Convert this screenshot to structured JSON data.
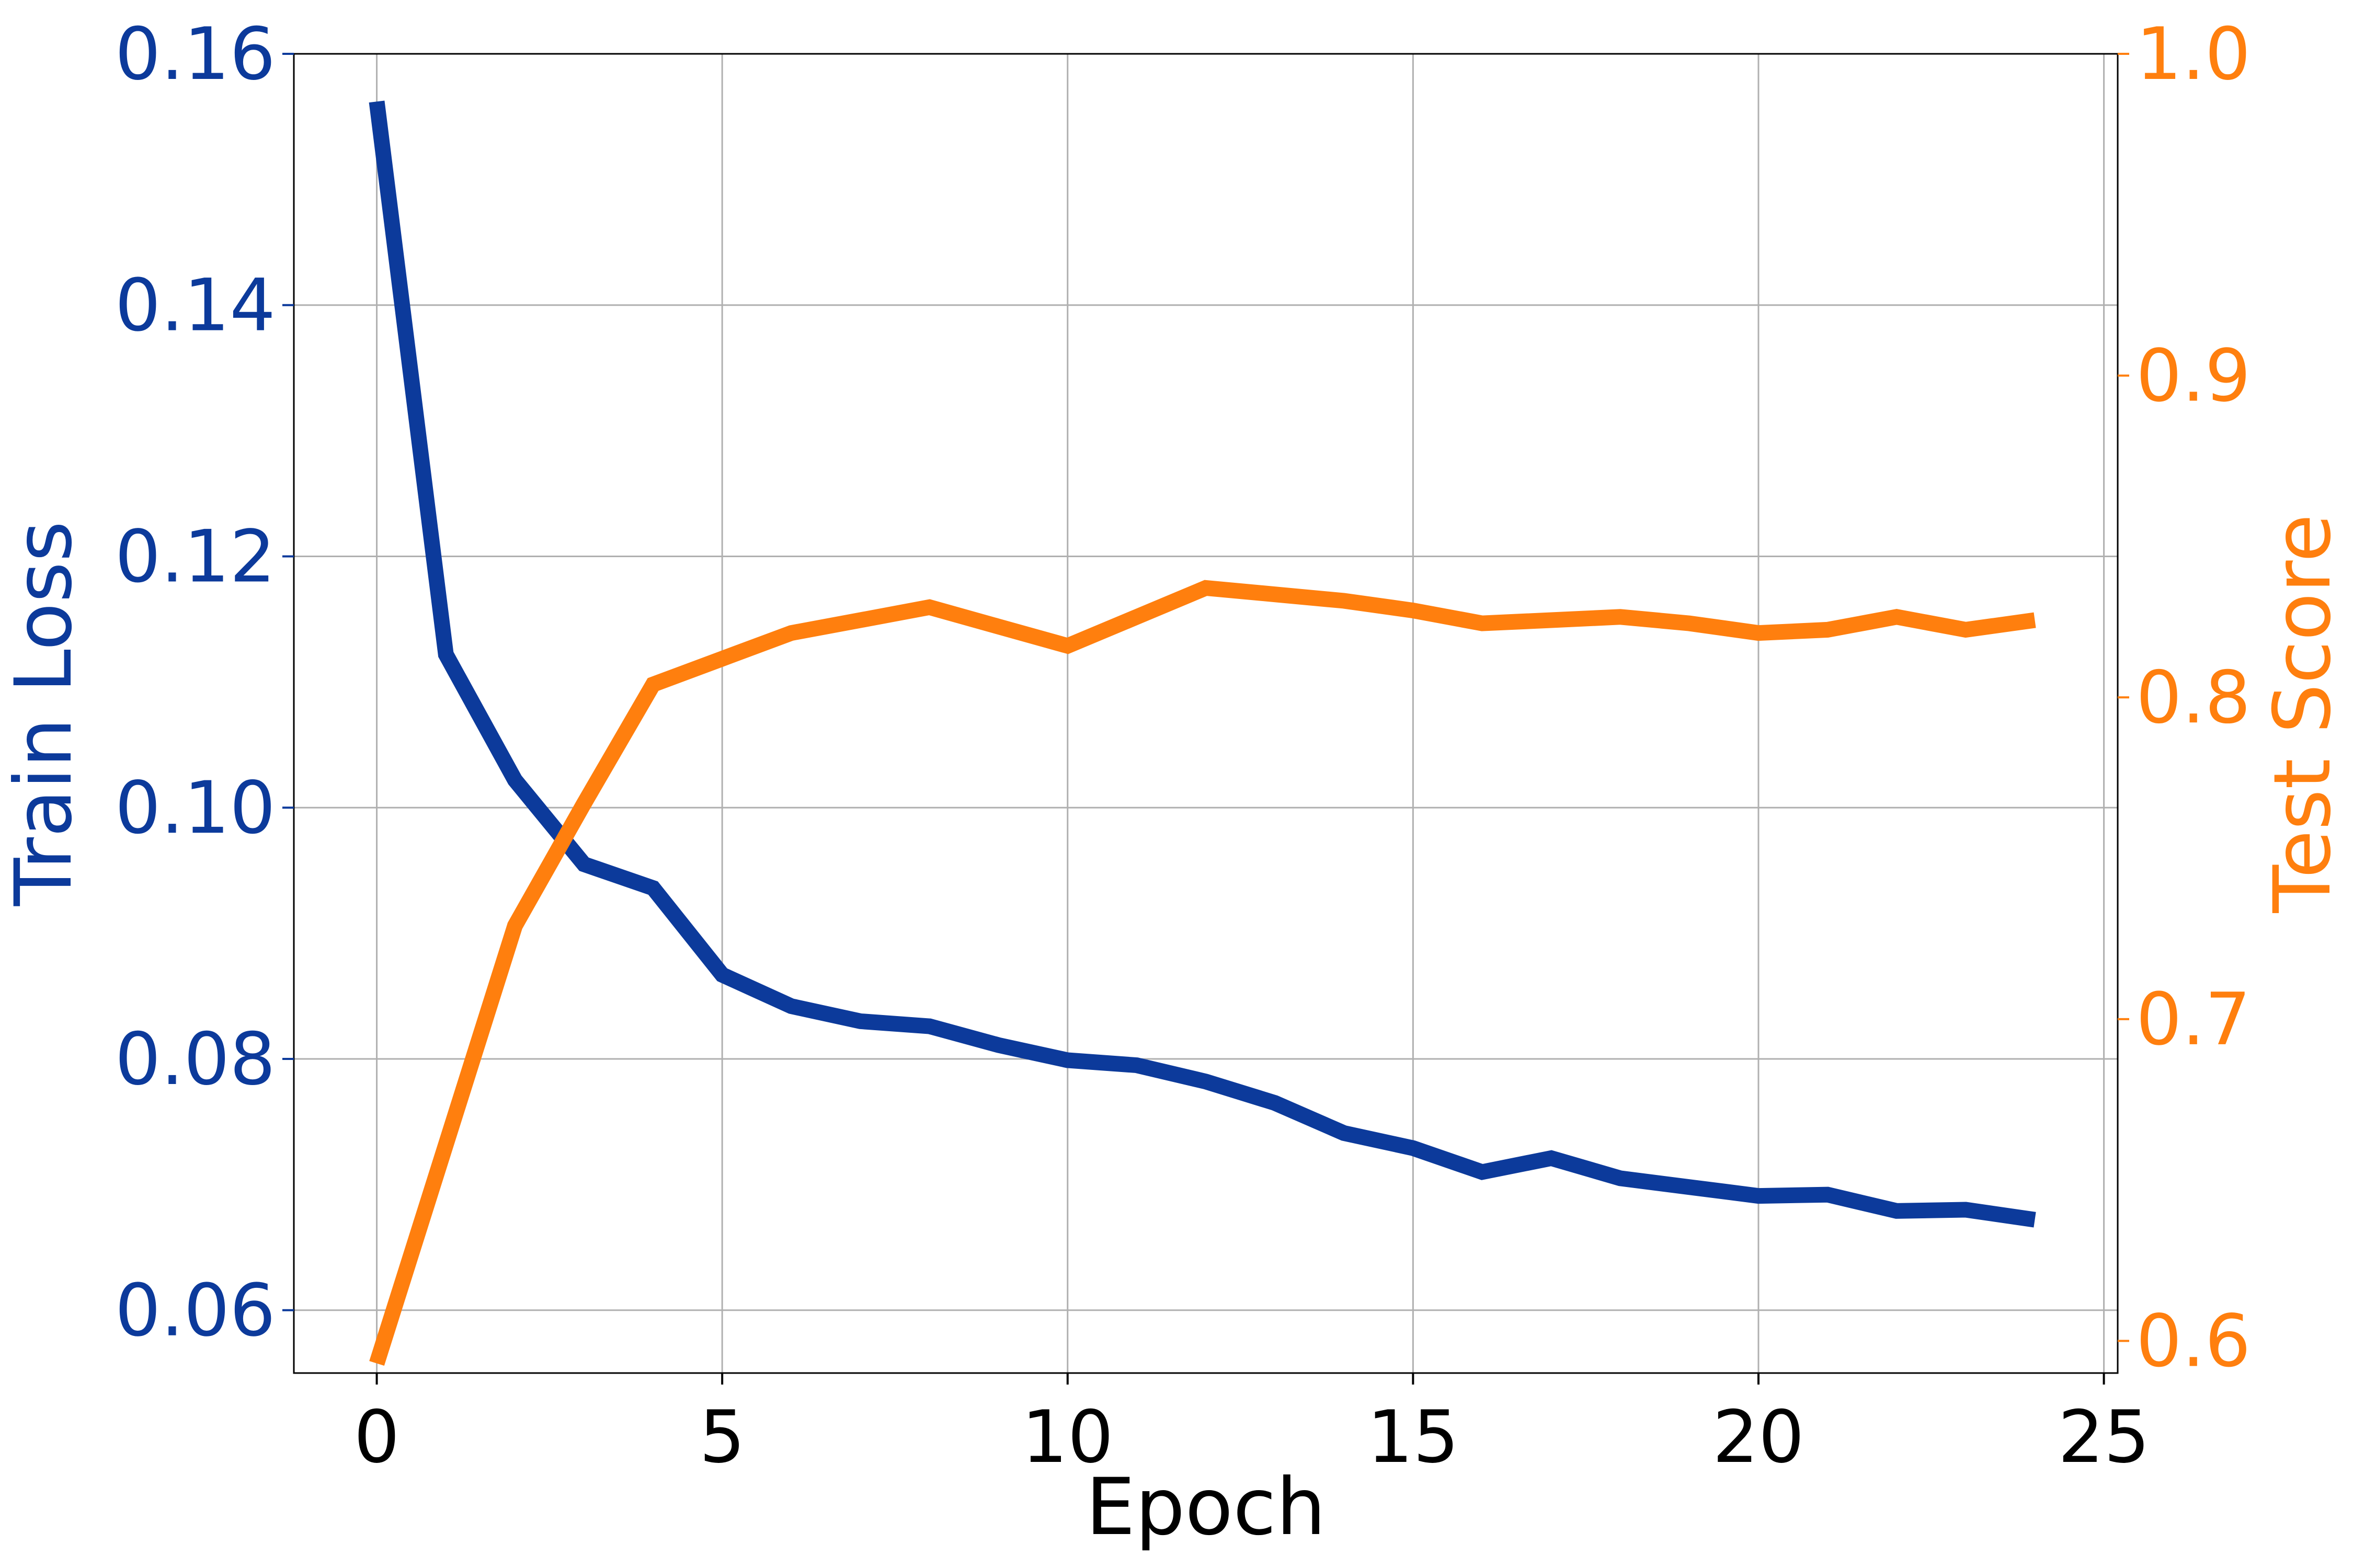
{
  "colors": {
    "left_axis": "#0c3a9b",
    "right_axis": "#ff7f0e",
    "x_axis": "#000000"
  },
  "chart_data": {
    "type": "line",
    "xlabel": "Epoch",
    "ylabel_left": "Train Loss",
    "ylabel_right": "Test Score",
    "xlim": [
      -1.2,
      25.2
    ],
    "ylim_left": [
      0.055,
      0.16
    ],
    "ylim_right": [
      0.59,
      1.0
    ],
    "grid": true,
    "x_ticks": [
      0,
      5,
      10,
      15,
      20,
      25
    ],
    "x_tick_labels": [
      "0",
      "5",
      "10",
      "15",
      "20",
      "25"
    ],
    "left_ticks": [
      0.06,
      0.08,
      0.1,
      0.12,
      0.14,
      0.16
    ],
    "left_tick_labels": [
      "0.06",
      "0.08",
      "0.10",
      "0.12",
      "0.14",
      "0.16"
    ],
    "right_ticks": [
      0.6,
      0.7,
      0.8,
      0.9,
      1.0
    ],
    "right_tick_labels": [
      "0.6",
      "0.7",
      "0.8",
      "0.9",
      "1.0"
    ],
    "x": [
      0,
      1,
      2,
      3,
      4,
      5,
      6,
      7,
      8,
      9,
      10,
      11,
      12,
      13,
      14,
      15,
      16,
      17,
      18,
      19,
      20,
      21,
      22,
      23,
      24
    ],
    "series": [
      {
        "axis": "left",
        "color": "#0c3a9b",
        "values": [
          0.1562,
          0.1122,
          0.1022,
          0.0955,
          0.0936,
          0.0867,
          0.0842,
          0.083,
          0.0826,
          0.0811,
          0.0799,
          0.0795,
          0.0782,
          0.0765,
          0.0741,
          0.0729,
          0.071,
          0.0721,
          0.0705,
          0.0698,
          0.0691,
          0.0692,
          0.0679,
          0.068,
          0.0672
        ]
      },
      {
        "axis": "right",
        "color": "#ff7f0e",
        "values": [
          0.593,
          0.661,
          0.729,
          0.767,
          0.804,
          0.812,
          0.82,
          0.824,
          0.828,
          0.822,
          0.816,
          0.825,
          0.834,
          0.832,
          0.83,
          0.827,
          0.823,
          0.824,
          0.825,
          0.823,
          0.82,
          0.821,
          0.825,
          0.821,
          0.824
        ]
      }
    ]
  }
}
